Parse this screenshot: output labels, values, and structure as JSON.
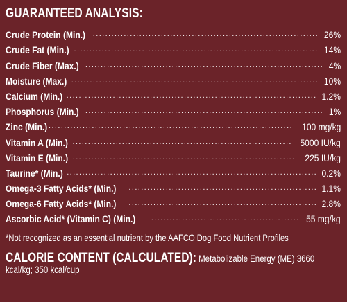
{
  "title": "GUARANTEED ANALYSIS:",
  "rows": [
    {
      "label": "Crude Protein (Min.)",
      "value": "26%"
    },
    {
      "label": "Crude Fat (Min.)",
      "value": "14%"
    },
    {
      "label": "Crude Fiber (Max.)",
      "value": "4%"
    },
    {
      "label": "Moisture (Max.)",
      "value": "10%"
    },
    {
      "label": "Calcium (Min.)",
      "value": "1.2%"
    },
    {
      "label": "Phosphorus (Min.)",
      "value": "1%"
    },
    {
      "label": "Zinc (Min.)",
      "value": "100 mg/kg"
    },
    {
      "label": "Vitamin A (Min.)",
      "value": "5000 IU/kg"
    },
    {
      "label": "Vitamin E (Min.)",
      "value": "225 IU/kg"
    },
    {
      "label": "Taurine* (Min.)",
      "value": "0.2%"
    },
    {
      "label": "Omega-3 Fatty Acids* (Min.)",
      "value": "1.1%"
    },
    {
      "label": "Omega-6 Fatty Acids* (Min.)",
      "value": "2.8%"
    },
    {
      "label": "Ascorbic Acid* (Vitamin C) (Min.)",
      "value": "55 mg/kg"
    }
  ],
  "footnote": "*Not recognized as an essential nutrient by the AAFCO Dog Food Nutrient Profiles",
  "calorie": {
    "heading": "CALORIE CONTENT (CALCULATED):",
    "text": " Metabolizable Energy (ME) 3660 kcal/kg; 350 kcal/cup"
  },
  "colors": {
    "background": "#6b2329",
    "text": "#ffffff"
  }
}
